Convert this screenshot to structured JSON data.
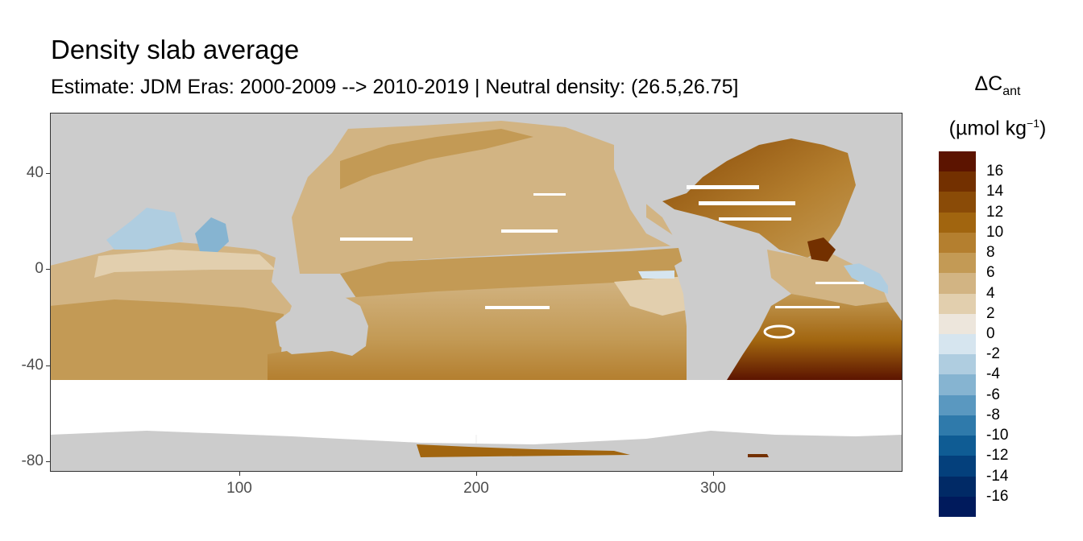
{
  "title": "Density slab average",
  "subtitle": "Estimate: JDM Eras: 2000-2009 --> 2010-2019 | Neutral density: (26.5,26.75]",
  "legend": {
    "symbol": "ΔC",
    "symbol_sub": "ant",
    "unit_pre": "(µmol kg",
    "unit_sup": "−1",
    "unit_post": ")",
    "bins": [
      {
        "label": "16",
        "color": "#5c1400"
      },
      {
        "label": "14",
        "color": "#733000"
      },
      {
        "label": "12",
        "color": "#8a4b07"
      },
      {
        "label": "10",
        "color": "#a1650f"
      },
      {
        "label": "8",
        "color": "#b47f2f"
      },
      {
        "label": "6",
        "color": "#c39a55"
      },
      {
        "label": "4",
        "color": "#d2b483"
      },
      {
        "label": "2",
        "color": "#e2cfae"
      },
      {
        "label": "0",
        "color": "#ede6dc"
      },
      {
        "label": "-2",
        "color": "#d6e5ef"
      },
      {
        "label": "-4",
        "color": "#afcde0"
      },
      {
        "label": "-6",
        "color": "#86b4d1"
      },
      {
        "label": "-8",
        "color": "#5a98c0"
      },
      {
        "label": "-10",
        "color": "#2f7aab"
      },
      {
        "label": "-12",
        "color": "#0f5c94"
      },
      {
        "label": "-14",
        "color": "#04407c"
      },
      {
        "label": "-16",
        "color": "#012a66"
      }
    ],
    "bottom_color": "#001a5c"
  },
  "axes": {
    "x_ticks": [
      100,
      200,
      300
    ],
    "y_ticks": [
      40,
      0,
      -40,
      -80
    ],
    "x_range": [
      20,
      380
    ],
    "y_range": [
      -85,
      65
    ]
  },
  "map_colors": {
    "land": "#cccccc",
    "nodata": "#ffffff",
    "grid": "#ebebeb"
  }
}
